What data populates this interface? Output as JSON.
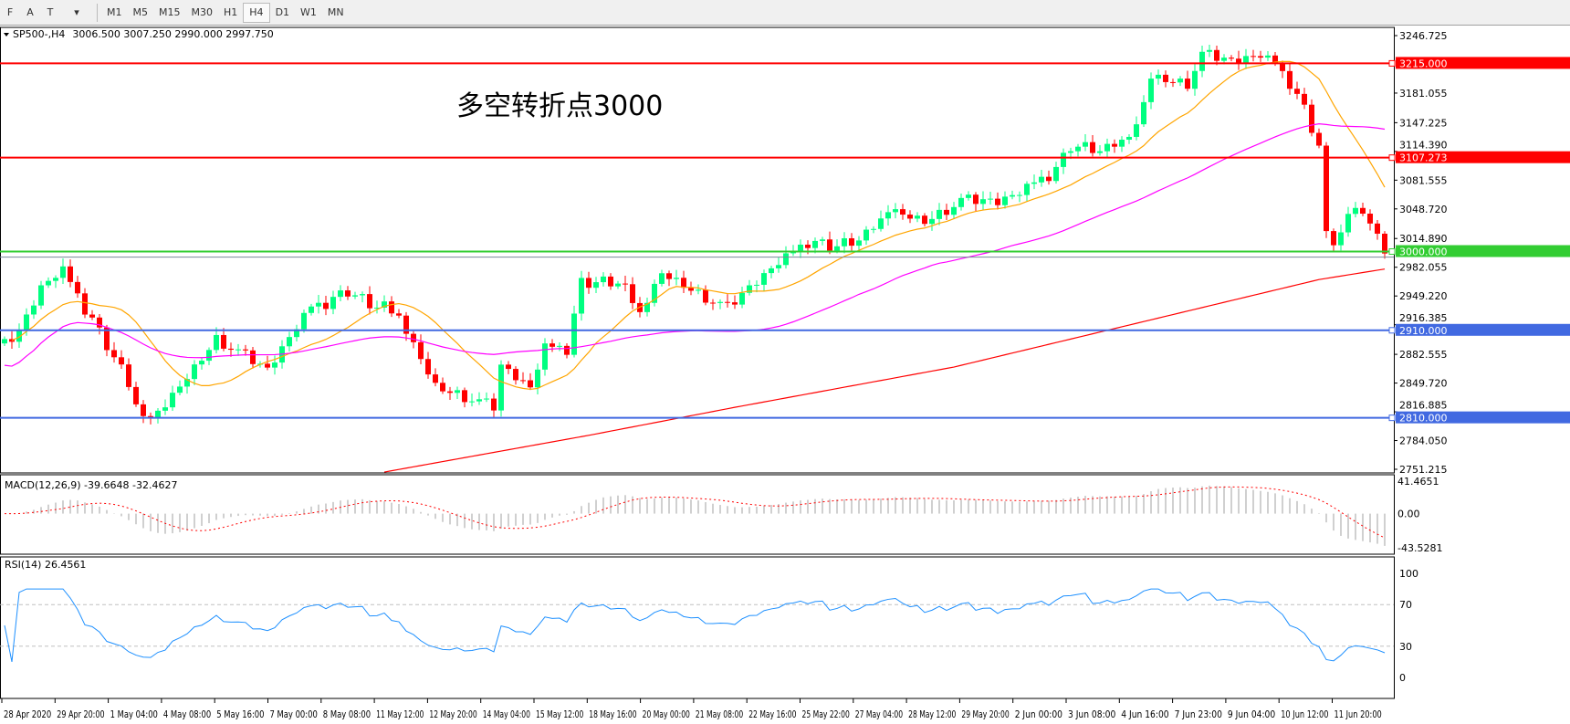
{
  "toolbar": {
    "tools": [
      {
        "icon": "grid-icon",
        "label": "F"
      },
      {
        "icon": "text-icon",
        "label": "A"
      },
      {
        "icon": "text-label-icon",
        "label": "T"
      },
      {
        "icon": "arrows-icon",
        "label": "▾"
      }
    ],
    "timeframes": [
      "M1",
      "M5",
      "M15",
      "M30",
      "H1",
      "H4",
      "D1",
      "W1",
      "MN"
    ],
    "active_timeframe": "H4"
  },
  "header": {
    "symbol": "SP500-,H4",
    "ohlc": "3006.500 3007.250 2990.000 2997.750"
  },
  "annotation": {
    "text": "多空转折点3000",
    "color": "#ff0000"
  },
  "chart_data": {
    "type": "candlestick",
    "ylim": [
      2751.215,
      3246.725
    ],
    "price_ticks": [
      "3246.725",
      "3181.055",
      "3147.225",
      "3114.390",
      "3081.555",
      "3048.720",
      "3014.890",
      "2982.055",
      "2949.220",
      "2916.385",
      "2882.555",
      "2849.720",
      "2816.885",
      "2784.050",
      "2751.215"
    ],
    "bars": 190,
    "close_points": [
      [
        0,
        2892
      ],
      [
        2,
        2905
      ],
      [
        5,
        2955
      ],
      [
        8,
        2975
      ],
      [
        12,
        2923
      ],
      [
        17,
        2850
      ],
      [
        19,
        2804
      ],
      [
        22,
        2830
      ],
      [
        26,
        2871
      ],
      [
        29,
        2903
      ],
      [
        36,
        2861
      ],
      [
        42,
        2934
      ],
      [
        47,
        2955
      ],
      [
        50,
        2940
      ],
      [
        54,
        2930
      ],
      [
        57,
        2882
      ],
      [
        59,
        2850
      ],
      [
        62,
        2840
      ],
      [
        67,
        2820
      ],
      [
        68,
        2866
      ],
      [
        72,
        2840
      ],
      [
        74,
        2887
      ],
      [
        77,
        2890
      ],
      [
        79,
        2965
      ],
      [
        84,
        2965
      ],
      [
        87,
        2934
      ],
      [
        90,
        2980
      ],
      [
        94,
        2960
      ],
      [
        99,
        2934
      ],
      [
        102,
        2955
      ],
      [
        107,
        2990
      ],
      [
        110,
        3012
      ],
      [
        114,
        3006
      ],
      [
        118,
        3017
      ],
      [
        121,
        3053
      ],
      [
        126,
        3038
      ],
      [
        131,
        3058
      ],
      [
        136,
        3053
      ],
      [
        139,
        3063
      ],
      [
        144,
        3095
      ],
      [
        146,
        3121
      ],
      [
        151,
        3115
      ],
      [
        155,
        3147
      ],
      [
        157,
        3204
      ],
      [
        162,
        3194
      ],
      [
        164,
        3225
      ],
      [
        168,
        3214
      ],
      [
        172,
        3220
      ],
      [
        174,
        3212
      ],
      [
        176,
        3194
      ],
      [
        178,
        3163
      ],
      [
        180,
        3121
      ],
      [
        181,
        3017
      ],
      [
        182,
        3012
      ],
      [
        184,
        3035
      ],
      [
        185,
        3053
      ],
      [
        187,
        3040
      ],
      [
        188,
        3022
      ],
      [
        189,
        2997.75
      ]
    ],
    "slow_ma_points": [
      [
        52,
        2748
      ],
      [
        80,
        2790
      ],
      [
        100,
        2822
      ],
      [
        130,
        2868
      ],
      [
        160,
        2928
      ],
      [
        180,
        2968
      ],
      [
        189,
        2980
      ]
    ],
    "up_color": "#00ff80",
    "down_color": "#ff0000",
    "fast_ma_color": "#ffa500",
    "mid_ma_color": "#ff00ff",
    "slow_ma_color": "#ff0000",
    "levels": [
      {
        "price": 3215.0,
        "label": "3215.000",
        "color": "#ff0000"
      },
      {
        "price": 3107.273,
        "label": "3107.273",
        "color": "#ff0000"
      },
      {
        "price": 3000.0,
        "label": "3000.000",
        "color": "#32cd32"
      },
      {
        "price": 2910.0,
        "label": "2910.000",
        "color": "#4169e1"
      },
      {
        "price": 2810.0,
        "label": "2810.000",
        "color": "#4169e1"
      }
    ],
    "date_labels": [
      "28 Apr 2020",
      "29 Apr 20:00",
      "1 May 04:00",
      "4 May 08:00",
      "5 May 16:00",
      "7 May 00:00",
      "8 May 08:00",
      "11 May 12:00",
      "12 May 20:00",
      "14 May 04:00",
      "15 May 12:00",
      "18 May 16:00",
      "20 May 00:00",
      "21 May 08:00",
      "22 May 16:00",
      "25 May 22:00",
      "27 May 04:00",
      "28 May 12:00",
      "29 May 20:00",
      "2 Jun 00:00",
      "3 Jun 08:00",
      "4 Jun 16:00",
      "7 Jun 23:00",
      "9 Jun 04:00",
      "10 Jun 12:00",
      "11 Jun 20:00"
    ],
    "macd": {
      "label": "MACD(12,26,9) -39.6648 -32.4627",
      "max": "41.4651",
      "zero": "0.00",
      "min": "-43.5281",
      "ylim": [
        -43.5281,
        41.4651
      ]
    },
    "rsi": {
      "label": "RSI(14) 26.4561",
      "ticks": [
        "100",
        "70",
        "30",
        "0"
      ],
      "levels": [
        70,
        30
      ],
      "color": "#1e90ff"
    }
  }
}
